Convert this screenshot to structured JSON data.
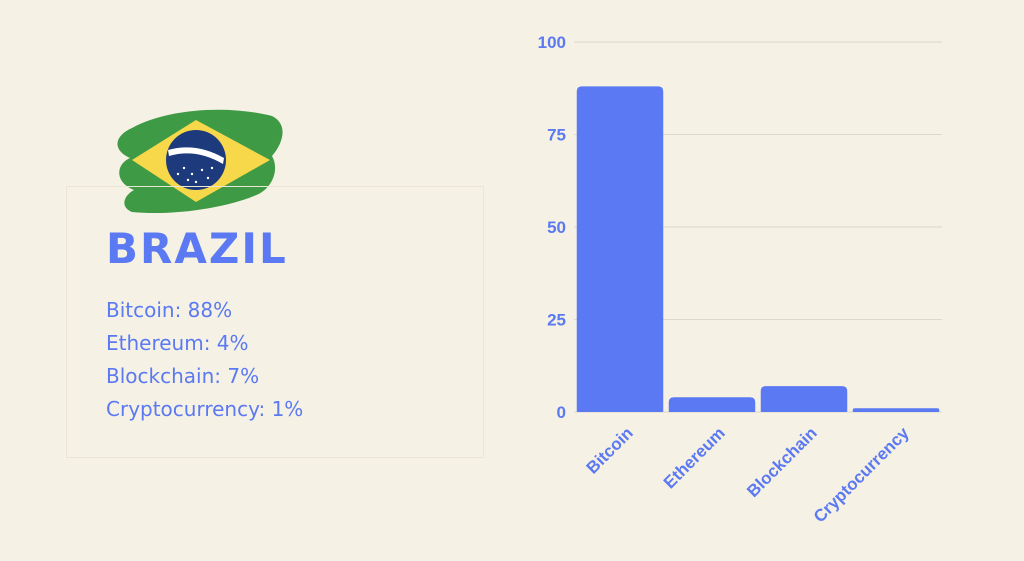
{
  "country": "BRAZIL",
  "stats": [
    {
      "label": "Bitcoin: 88%"
    },
    {
      "label": "Ethereum: 4%"
    },
    {
      "label": "Blockchain: 7%"
    },
    {
      "label": "Cryptocurrency: 1%"
    }
  ],
  "colors": {
    "background": "#f5f1e4",
    "accent": "#5b79f2",
    "flag_green": "#3f9a46",
    "flag_yellow": "#f7d84a",
    "flag_blue": "#1d3a7d"
  },
  "chart_data": {
    "type": "bar",
    "categories": [
      "Bitcoin",
      "Ethereum",
      "Blockchain",
      "Cryptocurrency"
    ],
    "values": [
      88,
      4,
      7,
      1
    ],
    "title": "",
    "xlabel": "",
    "ylabel": "",
    "ylim": [
      0,
      100
    ],
    "yticks": [
      0,
      25,
      50,
      75,
      100
    ],
    "grid": true,
    "legend": "none",
    "bar_color": "#5b79f2"
  }
}
